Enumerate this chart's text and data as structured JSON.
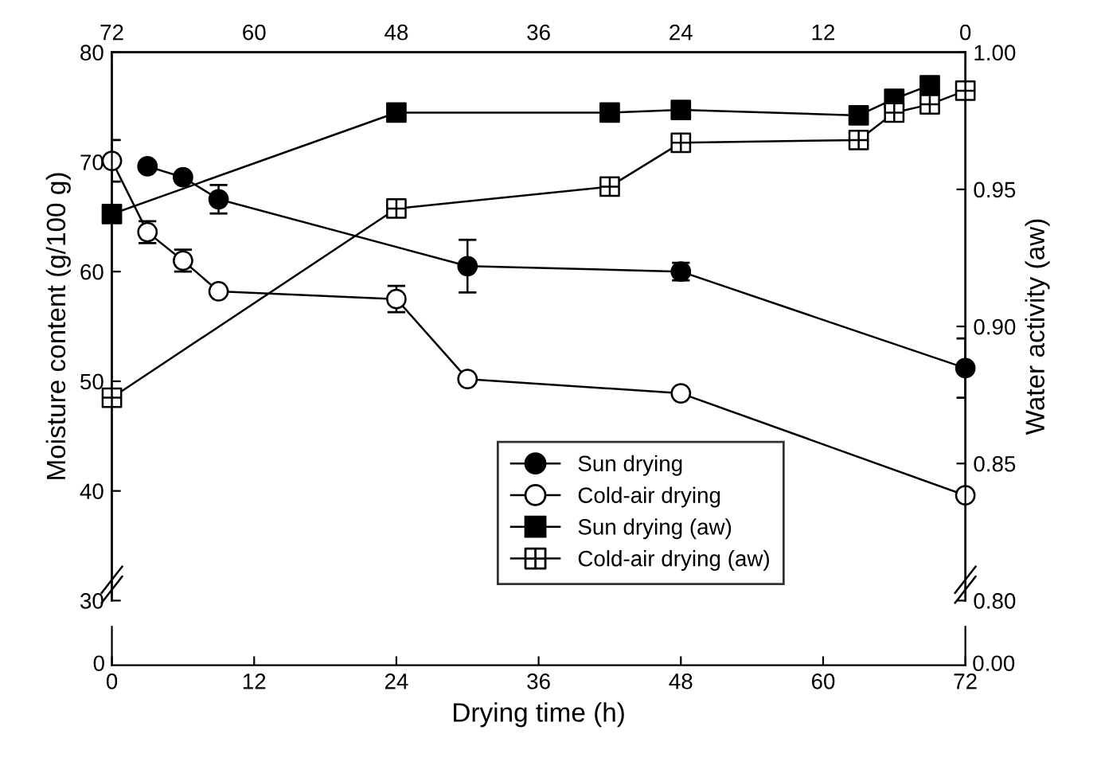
{
  "chart_data": {
    "type": "line",
    "xlabel": "Drying time (h)",
    "ylabel": "Moisture content (g/100 g)",
    "y2label": "Water activity (aw)",
    "xlim": [
      0,
      72
    ],
    "xticks": [
      0,
      12,
      24,
      36,
      48,
      60,
      72
    ],
    "x2lim": [
      72,
      0
    ],
    "x2ticks": [
      72,
      60,
      48,
      36,
      24,
      12,
      0
    ],
    "ylim": [
      30,
      80
    ],
    "yticks": [
      30,
      40,
      50,
      60,
      70,
      80
    ],
    "y2lim": [
      0.8,
      1.0
    ],
    "y2ticks": [
      {
        "value": 0.8,
        "label": "0.80"
      },
      {
        "value": 0.85,
        "label": "0.85"
      },
      {
        "value": 0.9,
        "label": "0.90"
      },
      {
        "value": 0.95,
        "label": "0.95"
      },
      {
        "value": 1.0,
        "label": "1.00"
      }
    ],
    "legend": "bottom right",
    "line_style": "solid",
    "annotations": [
      "0",
      "0.00"
    ],
    "series": [
      {
        "name": "Sun drying",
        "color": "#000000",
        "marker": "circle",
        "x": [
          3,
          6,
          9,
          30,
          48,
          72
        ],
        "values": [
          69.6,
          68.6,
          66.6,
          60.5,
          60.0,
          51.2
        ],
        "errors": [
          null,
          null,
          1.3,
          2.4,
          0.8,
          2.7
        ]
      },
      {
        "name": "Cold-air drying",
        "color": "#ffffff",
        "marker": "circle",
        "x": [
          0,
          3,
          6,
          9,
          24,
          30,
          48,
          72
        ],
        "values": [
          70.1,
          63.6,
          61.0,
          58.2,
          57.5,
          50.2,
          48.9,
          39.6
        ],
        "errors": [
          1.9,
          1.0,
          1.0,
          null,
          1.2,
          null,
          null,
          null
        ]
      },
      {
        "name": "Sun drying (aw)",
        "color": "#000000",
        "marker": "square",
        "axis": "y2",
        "x": [
          0,
          24,
          42,
          48,
          63,
          66,
          69
        ],
        "values": [
          0.941,
          0.978,
          0.978,
          0.979,
          0.977,
          0.983,
          0.988
        ]
      },
      {
        "name": "Cold-air drying (aw)",
        "color": "#ffffff",
        "marker": "cross",
        "axis": "y2",
        "x": [
          0,
          24,
          42,
          48,
          63,
          66,
          69,
          72
        ],
        "values": [
          0.874,
          0.943,
          0.951,
          0.967,
          0.968,
          0.978,
          0.981,
          0.986
        ]
      }
    ]
  }
}
